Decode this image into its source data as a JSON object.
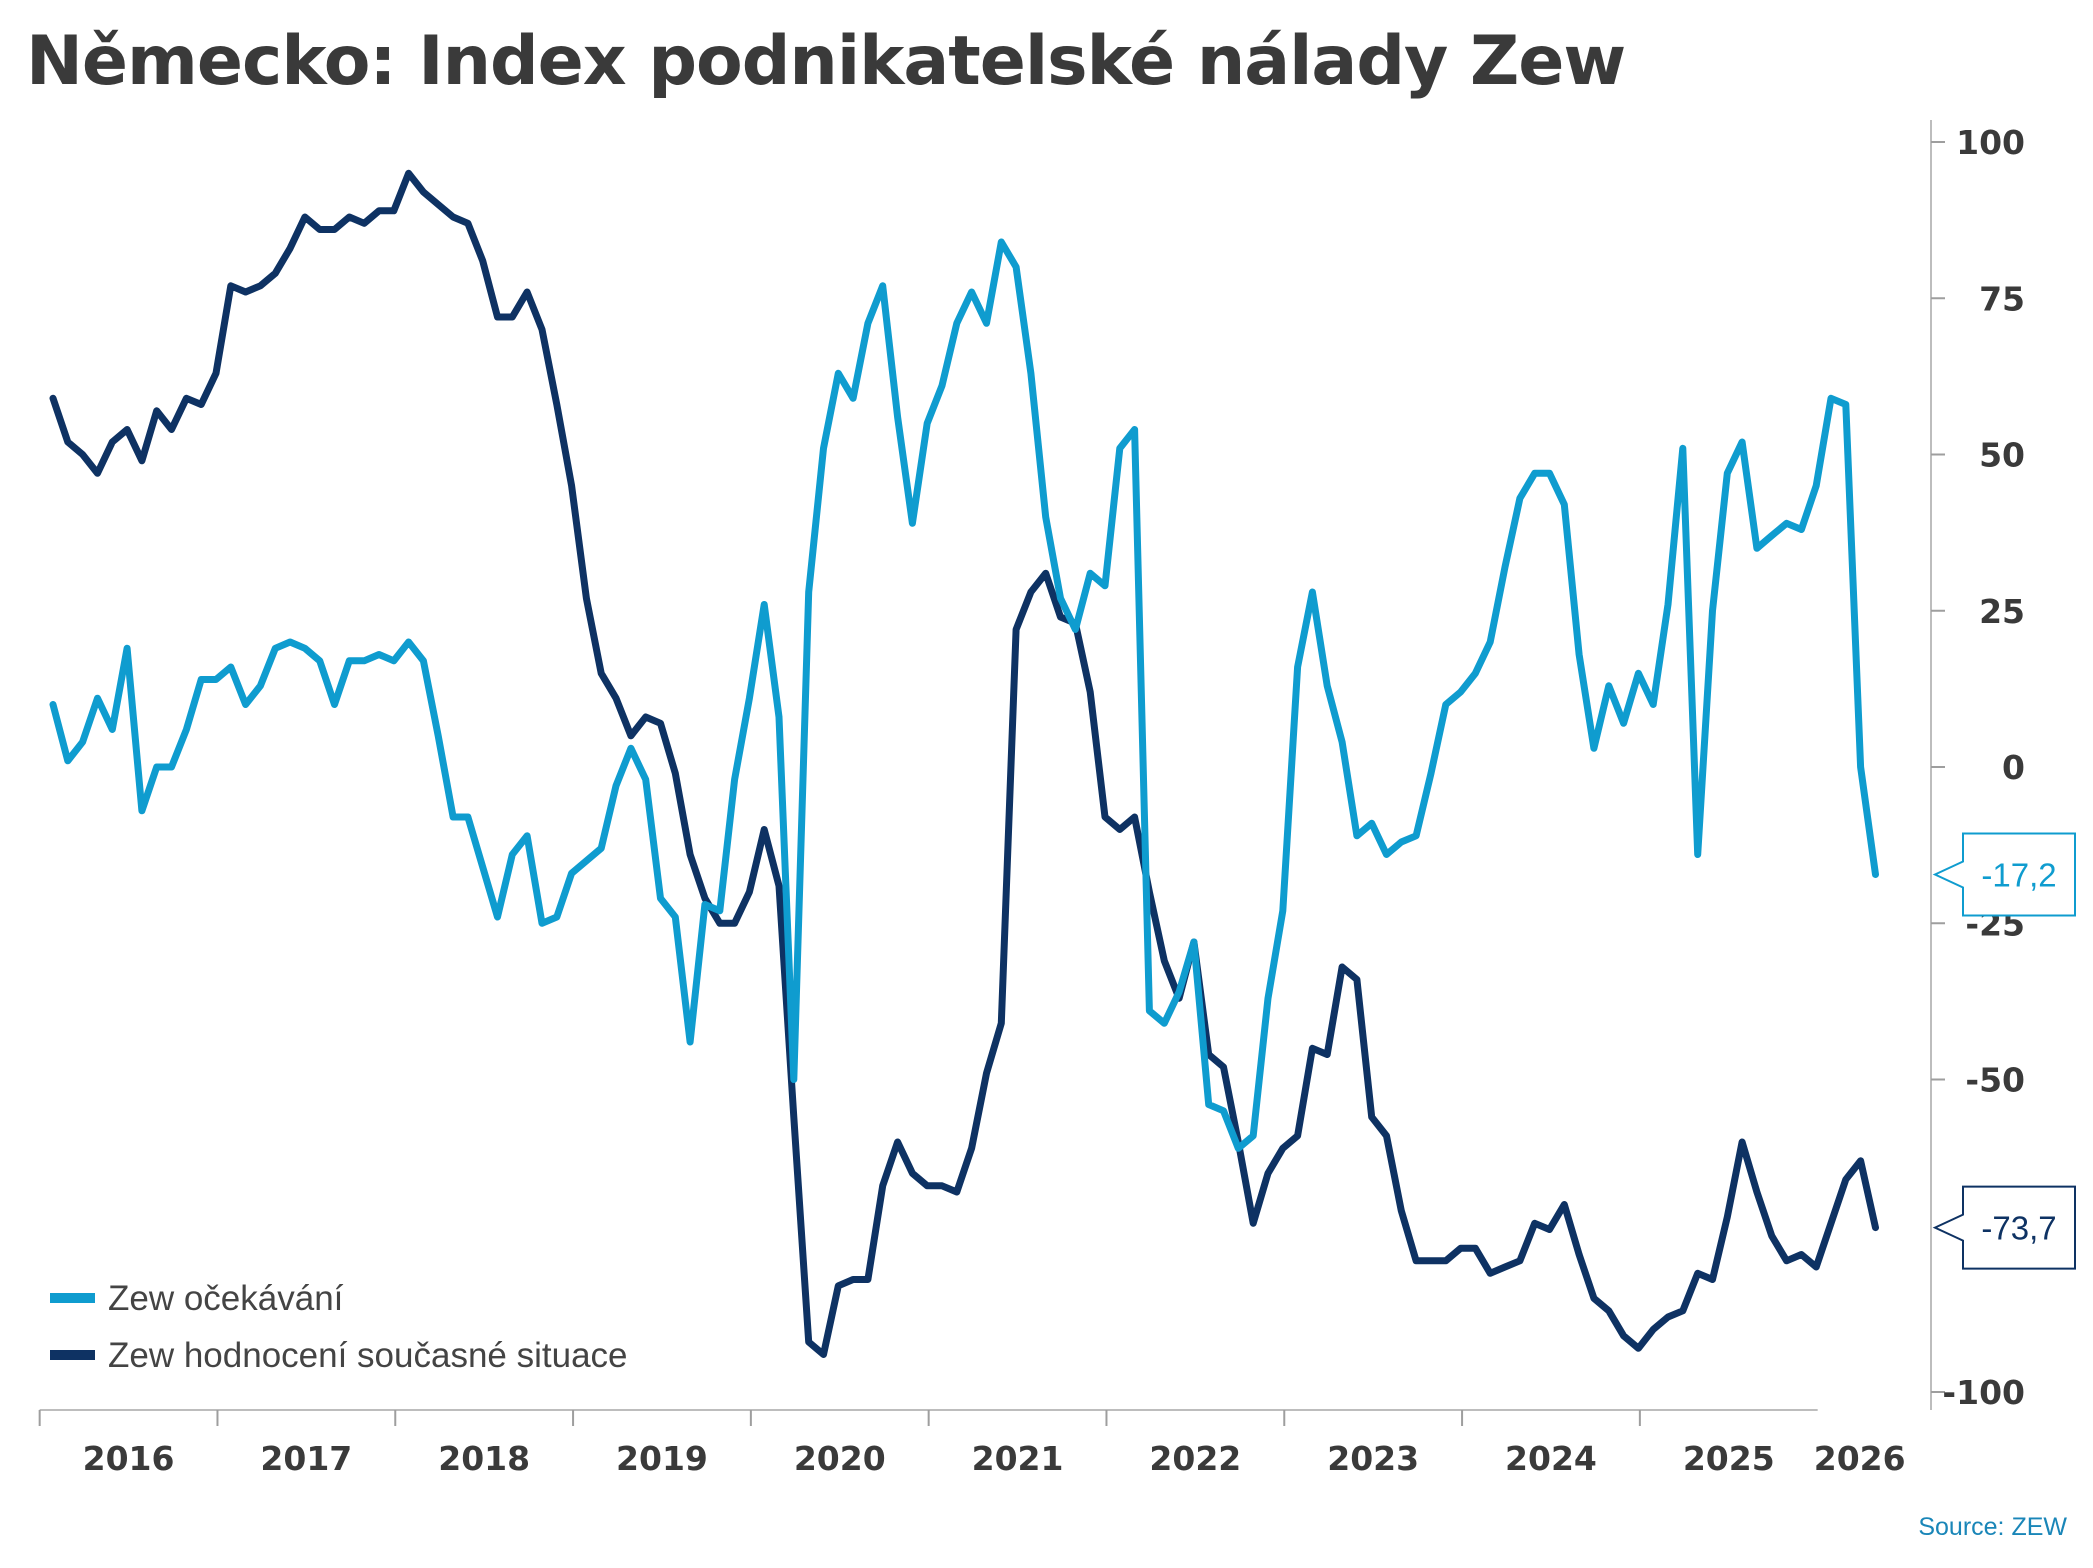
{
  "chart_data": {
    "type": "line",
    "title": "Německo: Index podnikatelské nálady Zew",
    "source": "Source: ZEW",
    "ylim": [
      -100,
      100
    ],
    "y_ticks": [
      {
        "value": 100,
        "label": "100"
      },
      {
        "value": 75,
        "label": "75"
      },
      {
        "value": 50,
        "label": "50"
      },
      {
        "value": 25,
        "label": "25"
      },
      {
        "value": 0,
        "label": "0"
      },
      {
        "value": -25,
        "label": "-25"
      },
      {
        "value": -50,
        "label": "-50"
      },
      {
        "value": -100,
        "label": "-100"
      }
    ],
    "x_ticks": [
      "2016",
      "2017",
      "2018",
      "2019",
      "2020",
      "2021",
      "2022",
      "2023",
      "2024",
      "2025",
      "2026"
    ],
    "x_start": "2016-01",
    "legend_position": "bottom-left",
    "grid": false,
    "series": [
      {
        "name": "Zew očekávání",
        "color": "#0f9ccf",
        "last_label": "-17,2",
        "values": [
          10,
          1,
          4,
          11,
          6,
          19,
          -7,
          0,
          0,
          6,
          14,
          14,
          16,
          10,
          13,
          19,
          20,
          19,
          17,
          10,
          17,
          17,
          18,
          17,
          20,
          17,
          5,
          -8,
          -8,
          -16,
          -24,
          -14,
          -11,
          -25,
          -24,
          -17,
          -15,
          -13,
          -3,
          3,
          -2,
          -21,
          -24,
          -44,
          -22,
          -23,
          -2,
          11,
          26,
          8,
          -50,
          28,
          51,
          63,
          59,
          71,
          77,
          56,
          39,
          55,
          61,
          71,
          76,
          71,
          84,
          80,
          63,
          40,
          27,
          22,
          31,
          29,
          51,
          54,
          -39,
          -41,
          -36,
          -28,
          -54,
          -55,
          -61,
          -59,
          -37,
          -23,
          16,
          28,
          13,
          4,
          -11,
          -9,
          -14,
          -12,
          -11,
          -1,
          10,
          12,
          15,
          20,
          32,
          43,
          47,
          47,
          42,
          18,
          3,
          13,
          7,
          15,
          10,
          26,
          51,
          -14,
          25,
          47,
          52,
          35,
          37,
          39,
          38,
          45,
          59,
          58,
          0,
          -17.2
        ]
      },
      {
        "name": "Zew hodnocení současné situace",
        "color": "#0e3263",
        "last_label": "-73,7",
        "values": [
          59,
          52,
          50,
          47,
          52,
          54,
          49,
          57,
          54,
          59,
          58,
          63,
          77,
          76,
          77,
          79,
          83,
          88,
          86,
          86,
          88,
          87,
          89,
          89,
          95,
          92,
          90,
          88,
          87,
          81,
          72,
          72,
          76,
          70,
          58,
          45,
          27,
          15,
          11,
          5,
          8,
          7,
          -1,
          -14,
          -21,
          -25,
          -25,
          -20,
          -10,
          -19,
          -56,
          -92,
          -94,
          -83,
          -82,
          -82,
          -67,
          -60,
          -65,
          -67,
          -67,
          -68,
          -61,
          -49,
          -41,
          22,
          28,
          31,
          24,
          23,
          12,
          -8,
          -10,
          -8,
          -20,
          -31,
          -37,
          -28,
          -46,
          -48,
          -60,
          -73,
          -65,
          -61,
          -59,
          -45,
          -46,
          -32,
          -34,
          -56,
          -59,
          -71,
          -79,
          -79,
          -79,
          -77,
          -77,
          -81,
          -80,
          -79,
          -73,
          -74,
          -70,
          -78,
          -85,
          -87,
          -91,
          -93,
          -90,
          -88,
          -87,
          -81,
          -82,
          -72,
          -60,
          -68,
          -75,
          -79,
          -78,
          -80,
          -73,
          -66,
          -63,
          -73.7
        ]
      }
    ]
  }
}
